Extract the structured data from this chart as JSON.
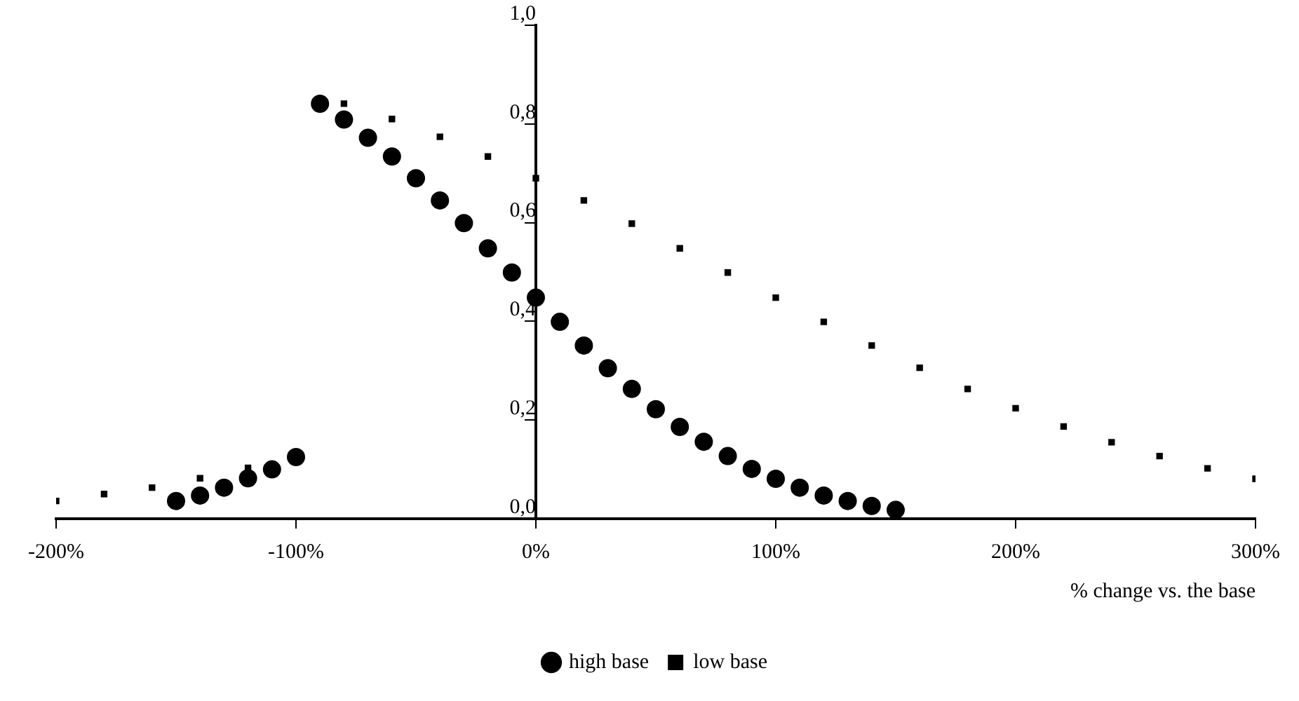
{
  "chart_data": {
    "type": "scatter",
    "xlabel": "% change vs. the base",
    "xlim": [
      -200,
      300
    ],
    "xticks": [
      {
        "value": -200,
        "label": "-200%"
      },
      {
        "value": -100,
        "label": "-100%"
      },
      {
        "value": 0,
        "label": "0%"
      },
      {
        "value": 100,
        "label": "100%"
      },
      {
        "value": 200,
        "label": "200%"
      },
      {
        "value": 300,
        "label": "300%"
      }
    ],
    "ylim": [
      0,
      1
    ],
    "yticks": [
      {
        "value": 0,
        "label": "0,0"
      },
      {
        "value": 0.2,
        "label": "0,2"
      },
      {
        "value": 0.4,
        "label": "0,4"
      },
      {
        "value": 0.6,
        "label": "0,6"
      },
      {
        "value": 0.8,
        "label": "0,8"
      },
      {
        "value": 1,
        "label": "1,0"
      }
    ],
    "grid": false,
    "legend": "bottom",
    "series": [
      {
        "name": "high base",
        "color": "#000000",
        "marker": "circle",
        "x": [
          -150,
          -140,
          -130,
          -120,
          -110,
          -100,
          -90,
          -80,
          -70,
          -60,
          -50,
          -40,
          -30,
          -20,
          -10,
          0,
          10,
          20,
          30,
          40,
          50,
          60,
          70,
          80,
          90,
          100,
          110,
          120,
          130,
          140,
          150
        ],
        "values": [
          0.036,
          0.047,
          0.063,
          0.082,
          0.1,
          0.125,
          0.841,
          0.809,
          0.772,
          0.734,
          0.69,
          0.645,
          0.599,
          0.548,
          0.499,
          0.448,
          0.399,
          0.351,
          0.305,
          0.263,
          0.222,
          0.186,
          0.156,
          0.127,
          0.101,
          0.081,
          0.063,
          0.047,
          0.036,
          0.026,
          0.018
        ]
      },
      {
        "name": "low base",
        "color": "#000000",
        "marker": "square",
        "x": [
          -200,
          -180,
          -160,
          -140,
          -120,
          -80,
          -60,
          -40,
          -20,
          0,
          20,
          40,
          60,
          80,
          100,
          120,
          140,
          160,
          180,
          200,
          220,
          240,
          260,
          280,
          300
        ],
        "values": [
          0.036,
          0.05,
          0.063,
          0.082,
          0.103,
          0.841,
          0.81,
          0.774,
          0.734,
          0.69,
          0.645,
          0.598,
          0.548,
          0.499,
          0.448,
          0.399,
          0.351,
          0.306,
          0.263,
          0.224,
          0.187,
          0.155,
          0.127,
          0.102,
          0.081
        ]
      }
    ]
  }
}
